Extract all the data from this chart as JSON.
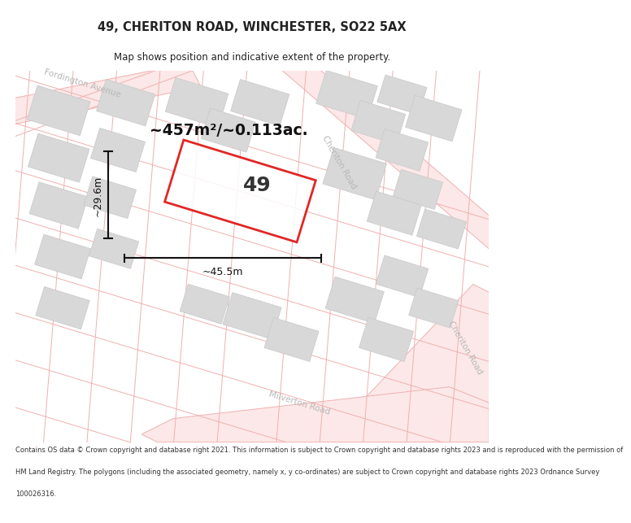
{
  "title_line1": "49, CHERITON ROAD, WINCHESTER, SO22 5AX",
  "title_line2": "Map shows position and indicative extent of the property.",
  "area_text": "~457m²/~0.113ac.",
  "property_number": "49",
  "dim_width": "~45.5m",
  "dim_height": "~29.6m",
  "footer_lines": [
    "Contains OS data © Crown copyright and database right 2021. This information is subject to Crown copyright and database rights 2023 and is reproduced with the permission of",
    "HM Land Registry. The polygons (including the associated geometry, namely x, y co-ordinates) are subject to Crown copyright and database rights 2023 Ordnance Survey",
    "100026316."
  ],
  "map_bg": "#ffffff",
  "road_stroke": "#f0b0b0",
  "road_fill": "#fce8e8",
  "building_fc": "#d8d8d8",
  "building_ec": "#c8c8c8",
  "property_color": "#dd0000",
  "dim_color": "#111111",
  "road_label_color": "#b8b8b8",
  "title_color": "#222222",
  "footer_color": "#333333",
  "area_color": "#111111"
}
